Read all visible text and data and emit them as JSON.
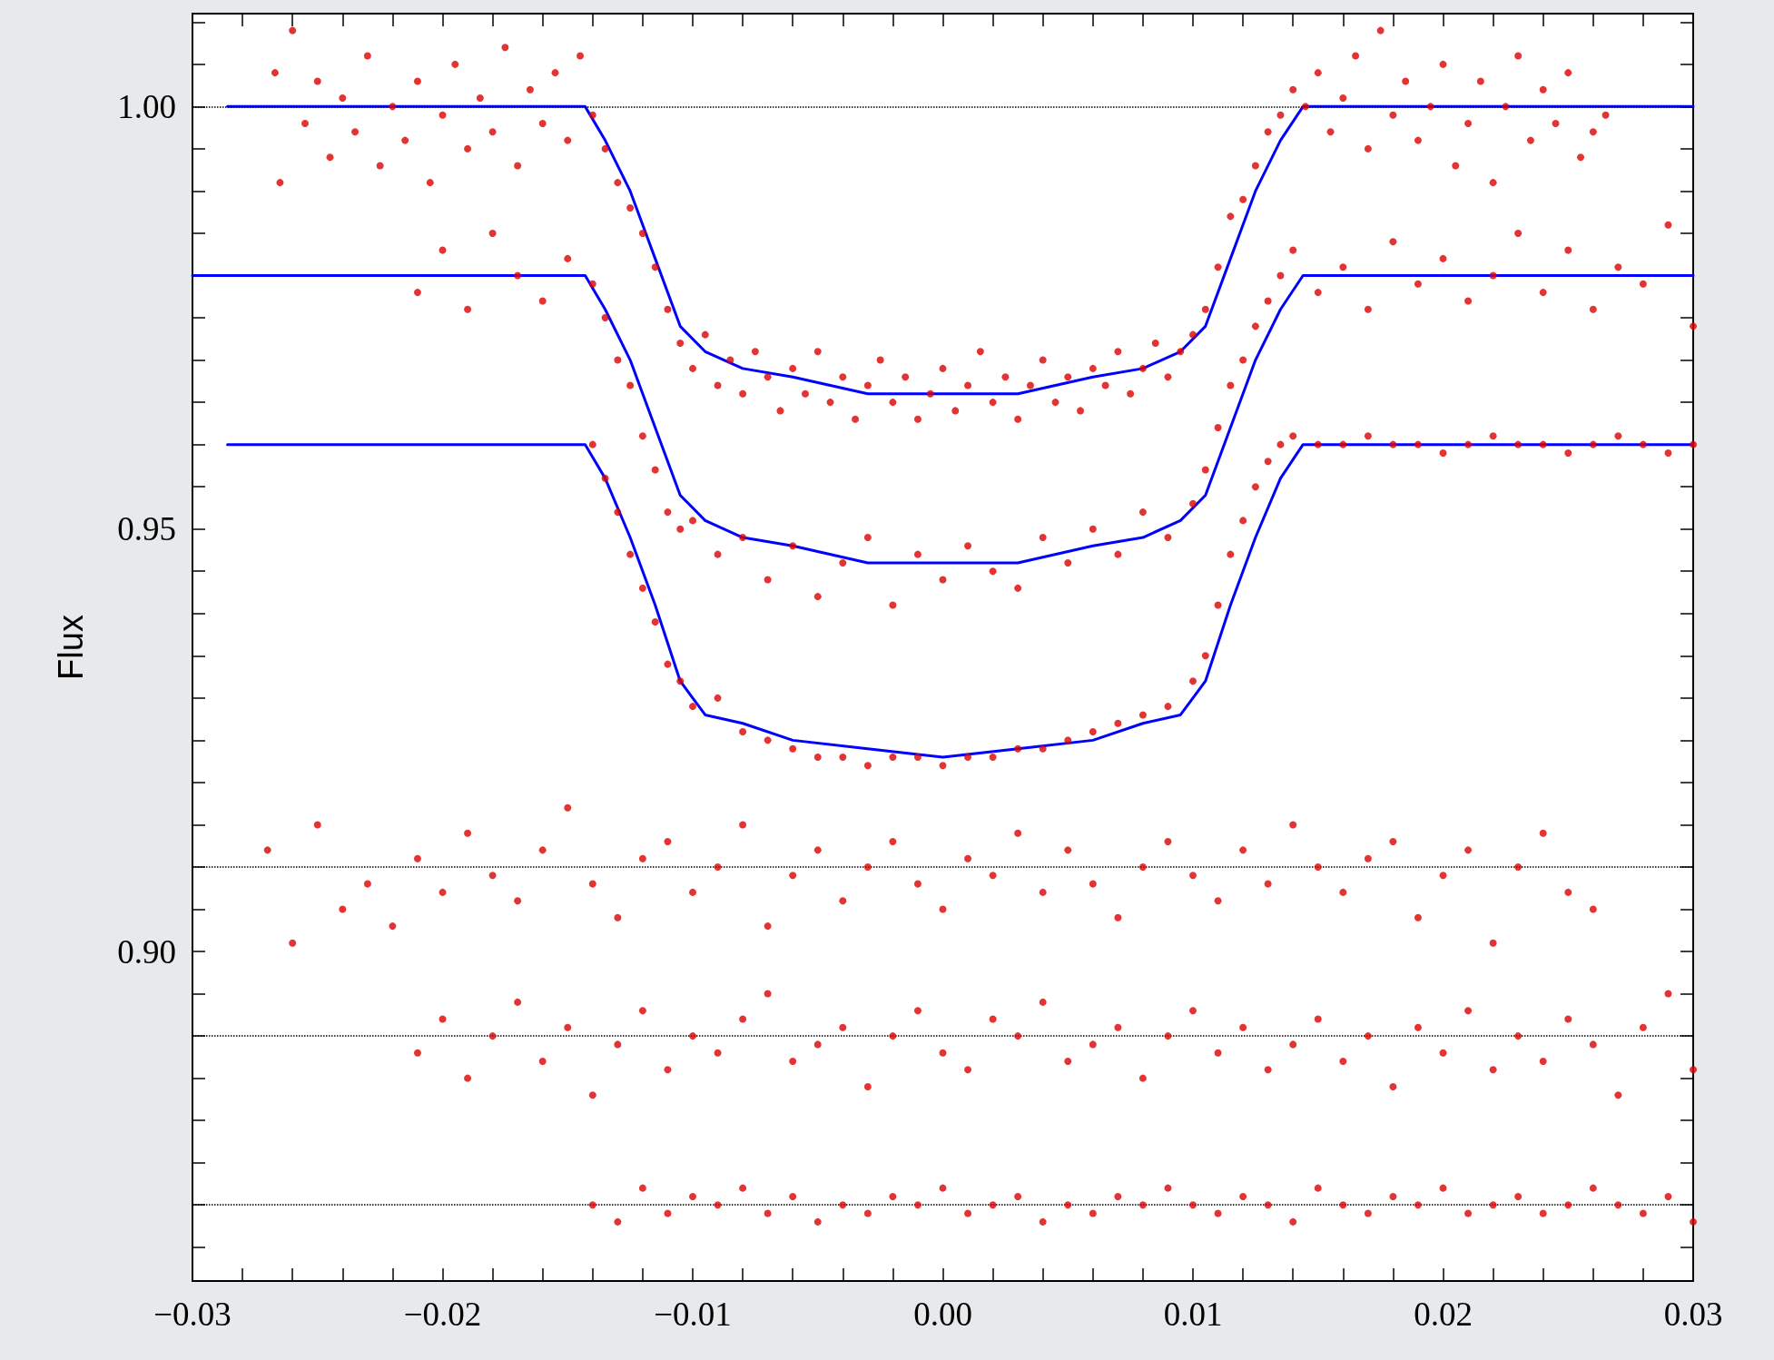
{
  "chart_data": {
    "type": "scatter",
    "ylabel": "Flux",
    "xlim": [
      -0.03,
      0.03
    ],
    "ylim": [
      0.861,
      1.011
    ],
    "grid": false,
    "marker": "circle",
    "xticks": [
      {
        "value": -0.03,
        "label": "−0.03"
      },
      {
        "value": -0.028,
        "label": null
      },
      {
        "value": -0.026,
        "label": null
      },
      {
        "value": -0.024,
        "label": null
      },
      {
        "value": -0.022,
        "label": null
      },
      {
        "value": -0.02,
        "label": "−0.02"
      },
      {
        "value": -0.018,
        "label": null
      },
      {
        "value": -0.016,
        "label": null
      },
      {
        "value": -0.014,
        "label": null
      },
      {
        "value": -0.012,
        "label": null
      },
      {
        "value": -0.01,
        "label": "−0.01"
      },
      {
        "value": -0.008,
        "label": null
      },
      {
        "value": -0.006,
        "label": null
      },
      {
        "value": -0.004,
        "label": null
      },
      {
        "value": -0.002,
        "label": null
      },
      {
        "value": 0,
        "label": "0.00"
      },
      {
        "value": 0.002,
        "label": null
      },
      {
        "value": 0.004,
        "label": null
      },
      {
        "value": 0.006,
        "label": null
      },
      {
        "value": 0.008,
        "label": null
      },
      {
        "value": 0.01,
        "label": "0.01"
      },
      {
        "value": 0.012,
        "label": null
      },
      {
        "value": 0.014,
        "label": null
      },
      {
        "value": 0.016,
        "label": null
      },
      {
        "value": 0.018,
        "label": null
      },
      {
        "value": 0.02,
        "label": "0.02"
      },
      {
        "value": 0.022,
        "label": null
      },
      {
        "value": 0.024,
        "label": null
      },
      {
        "value": 0.026,
        "label": null
      },
      {
        "value": 0.028,
        "label": null
      },
      {
        "value": 0.03,
        "label": "0.03"
      }
    ],
    "yticks": [
      {
        "value": 0.865,
        "label": null
      },
      {
        "value": 0.87,
        "label": null
      },
      {
        "value": 0.875,
        "label": null
      },
      {
        "value": 0.88,
        "label": null
      },
      {
        "value": 0.885,
        "label": null
      },
      {
        "value": 0.89,
        "label": null
      },
      {
        "value": 0.895,
        "label": null
      },
      {
        "value": 0.9,
        "label": "0.90"
      },
      {
        "value": 0.905,
        "label": null
      },
      {
        "value": 0.91,
        "label": null
      },
      {
        "value": 0.915,
        "label": null
      },
      {
        "value": 0.92,
        "label": null
      },
      {
        "value": 0.925,
        "label": null
      },
      {
        "value": 0.93,
        "label": null
      },
      {
        "value": 0.935,
        "label": null
      },
      {
        "value": 0.94,
        "label": null
      },
      {
        "value": 0.945,
        "label": null
      },
      {
        "value": 0.95,
        "label": "0.95"
      },
      {
        "value": 0.955,
        "label": null
      },
      {
        "value": 0.96,
        "label": null
      },
      {
        "value": 0.965,
        "label": null
      },
      {
        "value": 0.97,
        "label": null
      },
      {
        "value": 0.975,
        "label": null
      },
      {
        "value": 0.98,
        "label": null
      },
      {
        "value": 0.985,
        "label": null
      },
      {
        "value": 0.99,
        "label": null
      },
      {
        "value": 0.995,
        "label": null
      },
      {
        "value": 1.0,
        "label": "1.00"
      },
      {
        "value": 1.005,
        "label": null
      },
      {
        "value": 1.01,
        "label": null
      }
    ],
    "ref_lines": [
      {
        "axis": "y",
        "value": 1.0,
        "color": "#000000",
        "line_style": "dotted"
      },
      {
        "axis": "y",
        "value": 0.91,
        "color": "#000000",
        "line_style": "dotted"
      },
      {
        "axis": "y",
        "value": 0.89,
        "color": "#000000",
        "line_style": "dotted"
      },
      {
        "axis": "y",
        "value": 0.87,
        "color": "#000000",
        "line_style": "dotted"
      }
    ],
    "series": [
      {
        "color": "#dd0000",
        "x": [
          -0.0267,
          -0.0265,
          -0.026,
          -0.0255,
          -0.025,
          -0.0245,
          -0.024,
          -0.0235,
          -0.023,
          -0.0225,
          -0.022,
          -0.0215,
          -0.021,
          -0.0205,
          -0.02,
          -0.0195,
          -0.019,
          -0.0185,
          -0.018,
          -0.0175,
          -0.017,
          -0.0165,
          -0.016,
          -0.0155,
          -0.015,
          -0.0145,
          -0.014,
          -0.0135,
          -0.013,
          -0.0125,
          -0.012,
          -0.0115,
          -0.011,
          -0.0105,
          -0.01,
          -0.0095,
          -0.009,
          -0.0085,
          -0.008,
          -0.0075,
          -0.007,
          -0.0065,
          -0.006,
          -0.0055,
          -0.005,
          -0.0045,
          -0.004,
          -0.0035,
          -0.003,
          -0.0025,
          -0.002,
          -0.0015,
          -0.001,
          -0.0005,
          0,
          0.0005,
          0.001,
          0.0015,
          0.002,
          0.0025,
          0.003,
          0.0035,
          0.004,
          0.0045,
          0.005,
          0.0055,
          0.006,
          0.0065,
          0.007,
          0.0075,
          0.008,
          0.0085,
          0.009,
          0.0095,
          0.01,
          0.0105,
          0.011,
          0.0115,
          0.012,
          0.0125,
          0.013,
          0.0135,
          0.014,
          0.0145,
          0.015,
          0.0155,
          0.016,
          0.0165,
          0.017,
          0.0175,
          0.018,
          0.0185,
          0.019,
          0.0195,
          0.02,
          0.0205,
          0.021,
          0.0215,
          0.022,
          0.0225,
          0.023,
          0.0235,
          0.024,
          0.0245,
          0.025,
          0.0255,
          0.026,
          0.0265
        ],
        "values": [
          1.004,
          0.991,
          1.009,
          0.998,
          1.003,
          0.994,
          1.001,
          0.997,
          1.006,
          0.993,
          1.0,
          0.996,
          1.003,
          0.991,
          0.999,
          1.005,
          0.995,
          1.001,
          0.997,
          1.007,
          0.993,
          1.002,
          0.998,
          1.004,
          0.996,
          1.006,
          0.999,
          0.995,
          0.991,
          0.988,
          0.985,
          0.981,
          0.976,
          0.972,
          0.969,
          0.973,
          0.967,
          0.97,
          0.966,
          0.971,
          0.968,
          0.964,
          0.969,
          0.966,
          0.971,
          0.965,
          0.968,
          0.963,
          0.967,
          0.97,
          0.965,
          0.968,
          0.963,
          0.966,
          0.969,
          0.964,
          0.967,
          0.971,
          0.965,
          0.968,
          0.963,
          0.967,
          0.97,
          0.965,
          0.968,
          0.964,
          0.969,
          0.967,
          0.971,
          0.966,
          0.969,
          0.972,
          0.968,
          0.971,
          0.973,
          0.976,
          0.981,
          0.987,
          0.989,
          0.993,
          0.997,
          0.999,
          1.002,
          1.0,
          1.004,
          0.997,
          1.001,
          1.006,
          0.995,
          1.009,
          0.999,
          1.003,
          0.996,
          1.0,
          1.005,
          0.993,
          0.998,
          1.003,
          0.991,
          1.0,
          1.006,
          0.996,
          1.002,
          0.998,
          1.004,
          0.994,
          0.997,
          0.999
        ]
      },
      {
        "color": "#dd0000",
        "x": [
          -0.021,
          -0.02,
          -0.019,
          -0.018,
          -0.017,
          -0.016,
          -0.015,
          -0.014,
          -0.0135,
          -0.013,
          -0.0125,
          -0.012,
          -0.0115,
          -0.011,
          -0.0105,
          -0.01,
          -0.009,
          -0.008,
          -0.007,
          -0.006,
          -0.005,
          -0.004,
          -0.003,
          -0.002,
          -0.001,
          0,
          0.001,
          0.002,
          0.003,
          0.004,
          0.005,
          0.006,
          0.007,
          0.008,
          0.009,
          0.01,
          0.0105,
          0.011,
          0.0115,
          0.012,
          0.0125,
          0.013,
          0.0135,
          0.014,
          0.015,
          0.016,
          0.017,
          0.018,
          0.019,
          0.02,
          0.021,
          0.022,
          0.023,
          0.024,
          0.025,
          0.026,
          0.027,
          0.028,
          0.029,
          0.03
        ],
        "values": [
          0.978,
          0.983,
          0.976,
          0.985,
          0.98,
          0.977,
          0.982,
          0.979,
          0.975,
          0.97,
          0.967,
          0.961,
          0.957,
          0.952,
          0.95,
          0.951,
          0.947,
          0.949,
          0.944,
          0.948,
          0.942,
          0.946,
          0.949,
          0.941,
          0.947,
          0.944,
          0.948,
          0.945,
          0.943,
          0.949,
          0.946,
          0.95,
          0.947,
          0.952,
          0.949,
          0.953,
          0.957,
          0.962,
          0.967,
          0.97,
          0.974,
          0.977,
          0.98,
          0.983,
          0.978,
          0.981,
          0.976,
          0.984,
          0.979,
          0.982,
          0.977,
          0.98,
          0.985,
          0.978,
          0.983,
          0.976,
          0.981,
          0.979,
          0.986,
          0.974
        ]
      },
      {
        "color": "#dd0000",
        "x": [
          -0.014,
          -0.0135,
          -0.013,
          -0.0125,
          -0.012,
          -0.0115,
          -0.011,
          -0.0105,
          -0.01,
          -0.009,
          -0.008,
          -0.007,
          -0.006,
          -0.005,
          -0.004,
          -0.003,
          -0.002,
          -0.001,
          0,
          0.001,
          0.002,
          0.003,
          0.004,
          0.005,
          0.006,
          0.007,
          0.008,
          0.009,
          0.01,
          0.0105,
          0.011,
          0.0115,
          0.012,
          0.0125,
          0.013,
          0.0135,
          0.014,
          0.015,
          0.016,
          0.017,
          0.018,
          0.019,
          0.02,
          0.021,
          0.022,
          0.023,
          0.024,
          0.025,
          0.026,
          0.027,
          0.028,
          0.029,
          0.03
        ],
        "values": [
          0.96,
          0.956,
          0.952,
          0.947,
          0.943,
          0.939,
          0.934,
          0.932,
          0.929,
          0.93,
          0.926,
          0.925,
          0.924,
          0.923,
          0.923,
          0.922,
          0.923,
          0.923,
          0.922,
          0.923,
          0.923,
          0.924,
          0.924,
          0.925,
          0.926,
          0.927,
          0.928,
          0.929,
          0.932,
          0.935,
          0.941,
          0.947,
          0.951,
          0.955,
          0.958,
          0.96,
          0.961,
          0.96,
          0.96,
          0.961,
          0.96,
          0.96,
          0.959,
          0.96,
          0.961,
          0.96,
          0.96,
          0.959,
          0.96,
          0.961,
          0.96,
          0.959,
          0.96
        ]
      },
      {
        "color": "#dd0000",
        "x": [
          -0.027,
          -0.026,
          -0.025,
          -0.024,
          -0.023,
          -0.022,
          -0.021,
          -0.02,
          -0.019,
          -0.018,
          -0.017,
          -0.016,
          -0.015,
          -0.014,
          -0.013,
          -0.012,
          -0.011,
          -0.01,
          -0.009,
          -0.008,
          -0.007,
          -0.006,
          -0.005,
          -0.004,
          -0.003,
          -0.002,
          -0.001,
          0,
          0.001,
          0.002,
          0.003,
          0.004,
          0.005,
          0.006,
          0.007,
          0.008,
          0.009,
          0.01,
          0.011,
          0.012,
          0.013,
          0.014,
          0.015,
          0.016,
          0.017,
          0.018,
          0.019,
          0.02,
          0.021,
          0.022,
          0.023,
          0.024,
          0.025,
          0.026
        ],
        "values": [
          0.912,
          0.901,
          0.915,
          0.905,
          0.908,
          0.903,
          0.911,
          0.907,
          0.914,
          0.909,
          0.906,
          0.912,
          0.917,
          0.908,
          0.904,
          0.911,
          0.913,
          0.907,
          0.91,
          0.915,
          0.903,
          0.909,
          0.912,
          0.906,
          0.91,
          0.913,
          0.908,
          0.905,
          0.911,
          0.909,
          0.914,
          0.907,
          0.912,
          0.908,
          0.904,
          0.91,
          0.913,
          0.909,
          0.906,
          0.912,
          0.908,
          0.915,
          0.91,
          0.907,
          0.911,
          0.913,
          0.904,
          0.909,
          0.912,
          0.901,
          0.91,
          0.914,
          0.907,
          0.905
        ]
      },
      {
        "color": "#dd0000",
        "x": [
          -0.021,
          -0.02,
          -0.019,
          -0.018,
          -0.017,
          -0.016,
          -0.015,
          -0.014,
          -0.013,
          -0.012,
          -0.011,
          -0.01,
          -0.009,
          -0.008,
          -0.007,
          -0.006,
          -0.005,
          -0.004,
          -0.003,
          -0.002,
          -0.001,
          0,
          0.001,
          0.002,
          0.003,
          0.004,
          0.005,
          0.006,
          0.007,
          0.008,
          0.009,
          0.01,
          0.011,
          0.012,
          0.013,
          0.014,
          0.015,
          0.016,
          0.017,
          0.018,
          0.019,
          0.02,
          0.021,
          0.022,
          0.023,
          0.024,
          0.025,
          0.026,
          0.027,
          0.028,
          0.029,
          0.03
        ],
        "values": [
          0.888,
          0.892,
          0.885,
          0.89,
          0.894,
          0.887,
          0.891,
          0.883,
          0.889,
          0.893,
          0.886,
          0.89,
          0.888,
          0.892,
          0.895,
          0.887,
          0.889,
          0.891,
          0.884,
          0.89,
          0.893,
          0.888,
          0.886,
          0.892,
          0.89,
          0.894,
          0.887,
          0.889,
          0.891,
          0.885,
          0.89,
          0.893,
          0.888,
          0.891,
          0.886,
          0.889,
          0.892,
          0.887,
          0.89,
          0.884,
          0.891,
          0.888,
          0.893,
          0.886,
          0.89,
          0.887,
          0.892,
          0.889,
          0.883,
          0.891,
          0.895,
          0.886
        ]
      },
      {
        "color": "#dd0000",
        "x": [
          -0.014,
          -0.013,
          -0.012,
          -0.011,
          -0.01,
          -0.009,
          -0.008,
          -0.007,
          -0.006,
          -0.005,
          -0.004,
          -0.003,
          -0.002,
          -0.001,
          0,
          0.001,
          0.002,
          0.003,
          0.004,
          0.005,
          0.006,
          0.007,
          0.008,
          0.009,
          0.01,
          0.011,
          0.012,
          0.013,
          0.014,
          0.015,
          0.016,
          0.017,
          0.018,
          0.019,
          0.02,
          0.021,
          0.022,
          0.023,
          0.024,
          0.025,
          0.026,
          0.027,
          0.028,
          0.029,
          0.03
        ],
        "values": [
          0.87,
          0.868,
          0.872,
          0.869,
          0.871,
          0.87,
          0.872,
          0.869,
          0.871,
          0.868,
          0.87,
          0.869,
          0.871,
          0.87,
          0.872,
          0.869,
          0.87,
          0.871,
          0.868,
          0.87,
          0.869,
          0.871,
          0.87,
          0.872,
          0.87,
          0.869,
          0.871,
          0.87,
          0.868,
          0.872,
          0.87,
          0.869,
          0.871,
          0.87,
          0.872,
          0.869,
          0.87,
          0.871,
          0.869,
          0.87,
          0.872,
          0.87,
          0.869,
          0.871,
          0.868
        ]
      },
      {
        "type": "line",
        "color": "#0000ff",
        "marker": "none",
        "line_style": "solid",
        "x": [
          -0.0286,
          -0.0143,
          -0.0135,
          -0.0125,
          -0.0115,
          -0.0105,
          -0.0095,
          -0.008,
          -0.006,
          -0.003,
          0,
          0.003,
          0.006,
          0.008,
          0.0095,
          0.0105,
          0.0115,
          0.0125,
          0.0135,
          0.0144,
          0.03
        ],
        "values": [
          1.0,
          1.0,
          0.996,
          0.99,
          0.982,
          0.974,
          0.971,
          0.969,
          0.968,
          0.966,
          0.966,
          0.966,
          0.968,
          0.969,
          0.971,
          0.974,
          0.982,
          0.99,
          0.996,
          1.0,
          1.0
        ]
      },
      {
        "type": "line",
        "color": "#0000ff",
        "marker": "none",
        "line_style": "solid",
        "x": [
          -0.03,
          -0.0143,
          -0.0135,
          -0.0125,
          -0.0115,
          -0.0105,
          -0.0095,
          -0.008,
          -0.006,
          -0.003,
          0,
          0.003,
          0.006,
          0.008,
          0.0095,
          0.0105,
          0.0115,
          0.0125,
          0.0135,
          0.0144,
          0.03
        ],
        "values": [
          0.98,
          0.98,
          0.976,
          0.97,
          0.962,
          0.954,
          0.951,
          0.949,
          0.948,
          0.946,
          0.946,
          0.946,
          0.948,
          0.949,
          0.951,
          0.954,
          0.962,
          0.97,
          0.976,
          0.98,
          0.98
        ]
      },
      {
        "type": "line",
        "color": "#0000ff",
        "marker": "none",
        "line_style": "solid",
        "x": [
          -0.0286,
          -0.0143,
          -0.0135,
          -0.0125,
          -0.0115,
          -0.0105,
          -0.0095,
          -0.008,
          -0.006,
          -0.003,
          0,
          0.003,
          0.006,
          0.008,
          0.0095,
          0.0105,
          0.0115,
          0.0125,
          0.0135,
          0.0144,
          0.03
        ],
        "values": [
          0.96,
          0.96,
          0.956,
          0.949,
          0.941,
          0.932,
          0.928,
          0.927,
          0.925,
          0.924,
          0.923,
          0.924,
          0.925,
          0.927,
          0.928,
          0.932,
          0.941,
          0.949,
          0.956,
          0.96,
          0.96
        ]
      }
    ]
  }
}
